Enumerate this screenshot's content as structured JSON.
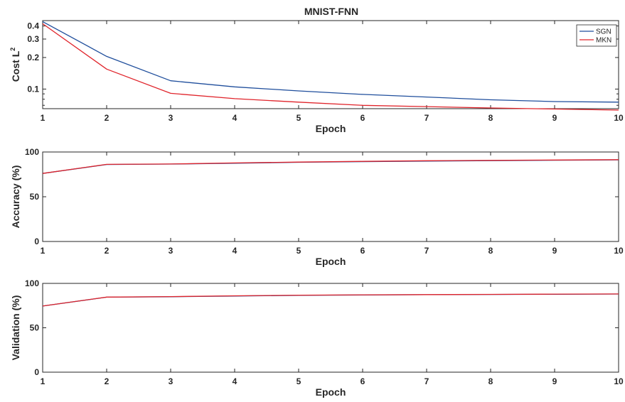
{
  "figure": {
    "title": "MNIST-FNN"
  },
  "chart_data": [
    {
      "type": "line",
      "title": "MNIST-FNN",
      "xlabel": "Epoch",
      "ylabel_text": "Cost L",
      "ylabel_sup": "2",
      "yscale": "log",
      "x": [
        1,
        2,
        3,
        4,
        5,
        6,
        7,
        8,
        9,
        10
      ],
      "xlim": [
        1,
        10
      ],
      "ylim": [
        0.065,
        0.45
      ],
      "yticks": [
        0.1,
        0.2,
        0.3,
        0.4
      ],
      "ytick_labels": [
        "0.1",
        "0.2",
        "0.3",
        "0.4"
      ],
      "xtick_labels": [
        "1",
        "2",
        "3",
        "4",
        "5",
        "6",
        "7",
        "8",
        "9",
        "10"
      ],
      "grid": false,
      "legend_position": "top-right",
      "series": [
        {
          "name": "SGN",
          "color": "#1f4e9c",
          "values": [
            0.44,
            0.205,
            0.12,
            0.105,
            0.096,
            0.089,
            0.084,
            0.079,
            0.076,
            0.075
          ]
        },
        {
          "name": "MKN",
          "color": "#e0242b",
          "values": [
            0.42,
            0.155,
            0.091,
            0.081,
            0.075,
            0.07,
            0.068,
            0.066,
            0.0645,
            0.063
          ]
        }
      ]
    },
    {
      "type": "line",
      "xlabel": "Epoch",
      "ylabel": "Accuracy (%)",
      "x": [
        1,
        2,
        3,
        4,
        5,
        6,
        7,
        8,
        9,
        10
      ],
      "xlim": [
        1,
        10
      ],
      "ylim": [
        0,
        100
      ],
      "yticks": [
        0,
        50,
        100
      ],
      "ytick_labels": [
        "0",
        "50",
        "100"
      ],
      "xtick_labels": [
        "1",
        "2",
        "3",
        "4",
        "5",
        "6",
        "7",
        "8",
        "9",
        "10"
      ],
      "grid": false,
      "series": [
        {
          "name": "SGN",
          "color": "#1f4e9c",
          "values": [
            76,
            86,
            86.5,
            87.5,
            88.5,
            89.2,
            89.8,
            90.3,
            90.8,
            91.2
          ]
        },
        {
          "name": "MKN",
          "color": "#e0242b",
          "values": [
            76,
            86.2,
            86.6,
            87.8,
            88.7,
            89.5,
            90.2,
            90.6,
            91.0,
            91.4
          ]
        }
      ]
    },
    {
      "type": "line",
      "xlabel": "Epoch",
      "ylabel": "Validation (%)",
      "x": [
        1,
        2,
        3,
        4,
        5,
        6,
        7,
        8,
        9,
        10
      ],
      "xlim": [
        1,
        10
      ],
      "ylim": [
        0,
        100
      ],
      "yticks": [
        0,
        50,
        100
      ],
      "ytick_labels": [
        "0",
        "50",
        "100"
      ],
      "xtick_labels": [
        "1",
        "2",
        "3",
        "4",
        "5",
        "6",
        "7",
        "8",
        "9",
        "10"
      ],
      "grid": false,
      "series": [
        {
          "name": "SGN",
          "color": "#1f4e9c",
          "values": [
            74.5,
            84.5,
            85,
            85.8,
            86.5,
            87,
            87.3,
            87.5,
            87.8,
            88
          ]
        },
        {
          "name": "MKN",
          "color": "#e0242b",
          "values": [
            74.5,
            84.6,
            85.1,
            86,
            86.7,
            87.1,
            87.4,
            87.6,
            87.9,
            88.1
          ]
        }
      ]
    }
  ]
}
